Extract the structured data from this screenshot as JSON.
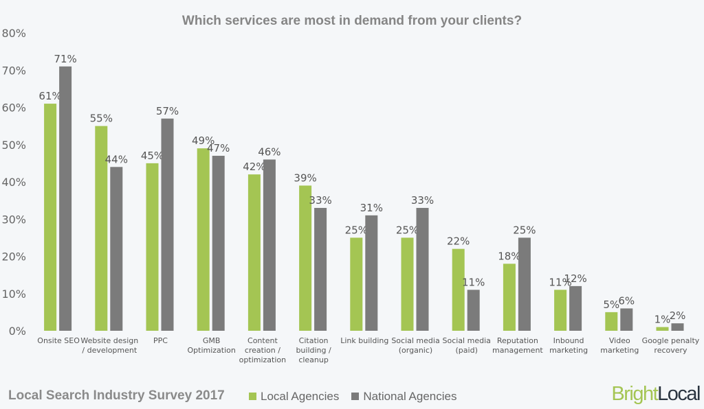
{
  "chart_data": {
    "type": "bar",
    "title": "Which services are most in demand from your clients?",
    "categories": [
      "Onsite SEO",
      "Website design / development",
      "PPC",
      "GMB Optimization",
      "Content creation / optimization",
      "Citation building / cleanup",
      "Link building",
      "Social media (organic)",
      "Social media (paid)",
      "Reputation management",
      "Inbound marketing",
      "Video marketing",
      "Google penalty recovery"
    ],
    "category_lines": [
      [
        "Onsite SEO"
      ],
      [
        "Website design",
        "/ development"
      ],
      [
        "PPC"
      ],
      [
        "GMB",
        "Optimization"
      ],
      [
        "Content",
        "creation /",
        "optimization"
      ],
      [
        "Citation",
        "building /",
        "cleanup"
      ],
      [
        "Link building"
      ],
      [
        "Social media",
        "(organic)"
      ],
      [
        "Social media",
        "(paid)"
      ],
      [
        "Reputation",
        "management"
      ],
      [
        "Inbound",
        "marketing"
      ],
      [
        "Video",
        "marketing"
      ],
      [
        "Google penalty",
        "recovery"
      ]
    ],
    "series": [
      {
        "name": "Local Agencies",
        "color": "#a4c553",
        "values": [
          61,
          55,
          45,
          49,
          42,
          39,
          25,
          25,
          22,
          18,
          11,
          5,
          1
        ]
      },
      {
        "name": "National Agencies",
        "color": "#7b7b7b",
        "values": [
          71,
          44,
          57,
          47,
          46,
          33,
          31,
          33,
          11,
          25,
          12,
          6,
          2
        ]
      }
    ],
    "yticks": [
      "0%",
      "10%",
      "20%",
      "30%",
      "40%",
      "50%",
      "60%",
      "70%",
      "80%"
    ],
    "ylim": [
      0,
      80
    ],
    "grid": false,
    "legend_position": "bottom",
    "value_suffix": "%"
  },
  "footer": {
    "survey_title": "Local Search Industry Survey 2017"
  },
  "logo": {
    "part1": "Bright",
    "part2": "Local",
    "color1": "#a4c553",
    "color2": "#2a3440"
  }
}
